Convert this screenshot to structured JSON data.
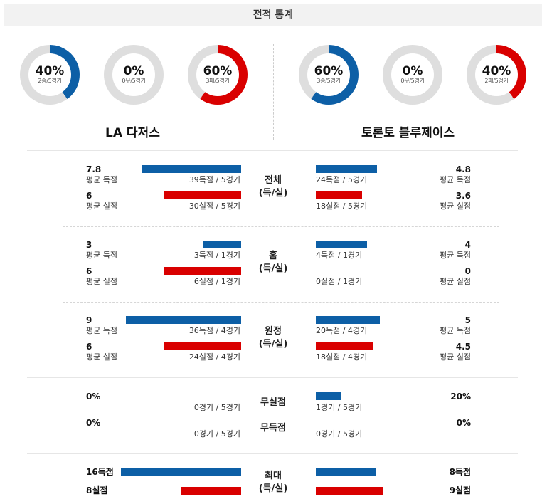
{
  "header": {
    "title": "전적 통계"
  },
  "colors": {
    "blue": "#0d5fa6",
    "red": "#d90000",
    "gray": "#dedede"
  },
  "left_team": {
    "name": "LA 다저스",
    "donuts": [
      {
        "pct": "40%",
        "sub": "2승/5경기",
        "fraction": 0.4,
        "color": "#0d5fa6"
      },
      {
        "pct": "0%",
        "sub": "0무/5경기",
        "fraction": 0.0,
        "color": "#0d5fa6"
      },
      {
        "pct": "60%",
        "sub": "3패/5경기",
        "fraction": 0.6,
        "color": "#d90000"
      }
    ]
  },
  "right_team": {
    "name": "토론토 블루제이스",
    "donuts": [
      {
        "pct": "60%",
        "sub": "3승/5경기",
        "fraction": 0.6,
        "color": "#0d5fa6"
      },
      {
        "pct": "0%",
        "sub": "0무/5경기",
        "fraction": 0.0,
        "color": "#0d5fa6"
      },
      {
        "pct": "40%",
        "sub": "2패/5경기",
        "fraction": 0.4,
        "color": "#d90000"
      }
    ]
  },
  "sections": {
    "total": {
      "category": "전체",
      "category2": "(득/실)",
      "left": {
        "scored_avg": "7.8",
        "scored_label": "평균 득점",
        "scored_count": "39득점 / 5경기",
        "scored_bar": 7.8,
        "allowed_avg": "6",
        "allowed_label": "평균 실점",
        "allowed_count": "30실점 / 5경기",
        "allowed_bar": 6
      },
      "right": {
        "scored_avg": "4.8",
        "scored_label": "평균 득점",
        "scored_count": "24득점 / 5경기",
        "scored_bar": 4.8,
        "allowed_avg": "3.6",
        "allowed_label": "평균 실점",
        "allowed_count": "18실점 / 5경기",
        "allowed_bar": 3.6
      }
    },
    "home": {
      "category": "홈",
      "category2": "(득/실)",
      "left": {
        "scored_avg": "3",
        "scored_label": "평균 득점",
        "scored_count": "3득점 / 1경기",
        "scored_bar": 3,
        "allowed_avg": "6",
        "allowed_label": "평균 실점",
        "allowed_count": "6실점 / 1경기",
        "allowed_bar": 6
      },
      "right": {
        "scored_avg": "4",
        "scored_label": "평균 득점",
        "scored_count": "4득점 / 1경기",
        "scored_bar": 4,
        "allowed_avg": "0",
        "allowed_label": "평균 실점",
        "allowed_count": "0실점 / 1경기",
        "allowed_bar": 0
      }
    },
    "away": {
      "category": "원정",
      "category2": "(득/실)",
      "left": {
        "scored_avg": "9",
        "scored_label": "평균 득점",
        "scored_count": "36득점 / 4경기",
        "scored_bar": 9,
        "allowed_avg": "6",
        "allowed_label": "평균 실점",
        "allowed_count": "24실점 / 4경기",
        "allowed_bar": 6
      },
      "right": {
        "scored_avg": "5",
        "scored_label": "평균 득점",
        "scored_count": "20득점 / 4경기",
        "scored_bar": 5,
        "allowed_avg": "4.5",
        "allowed_label": "평균 실점",
        "allowed_count": "18실점 / 4경기",
        "allowed_bar": 4.5
      }
    },
    "shutout": {
      "category_a": "무실점",
      "category_b": "무득점",
      "left": {
        "a_pct": "0%",
        "a_count": "0경기 / 5경기",
        "b_pct": "0%",
        "b_count": "0경기 / 5경기",
        "a_bar": 0,
        "b_bar": 0
      },
      "right": {
        "a_pct": "20%",
        "a_count": "1경기 / 5경기",
        "b_pct": "0%",
        "b_count": "0경기 / 5경기",
        "a_bar": 20,
        "b_bar": 0
      }
    },
    "max": {
      "category": "최대",
      "category2": "(득/실)",
      "left": {
        "scored": "16득점",
        "allowed": "8실점",
        "scored_bar": 16,
        "allowed_bar": 8
      },
      "right": {
        "scored": "8득점",
        "allowed": "9실점",
        "scored_bar": 8,
        "allowed_bar": 9
      }
    }
  }
}
